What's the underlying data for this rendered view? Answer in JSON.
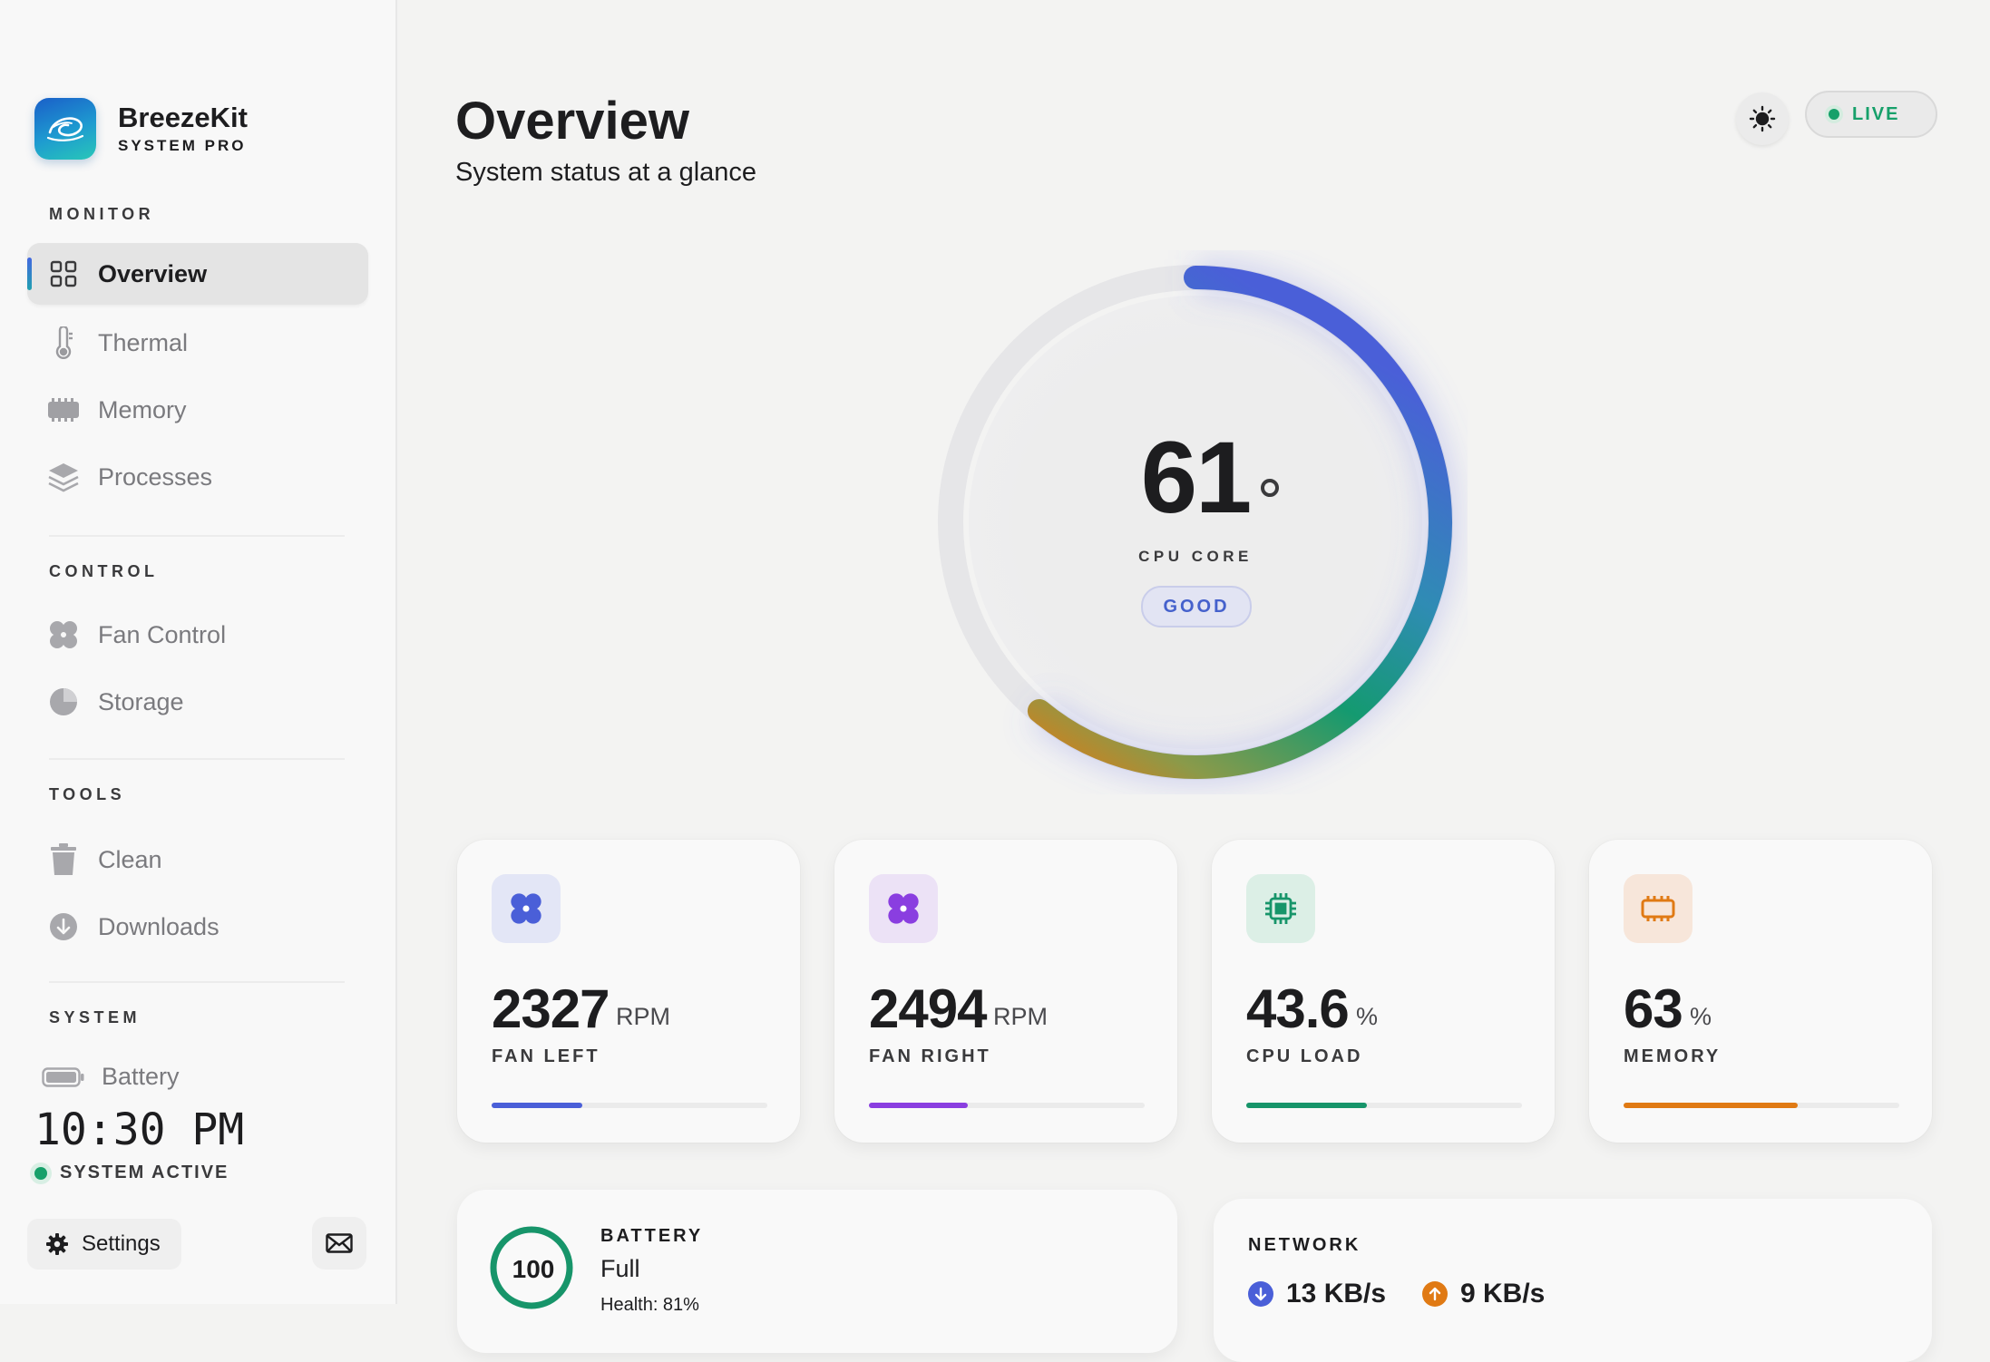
{
  "app": {
    "name": "BreezeKit",
    "edition": "SYSTEM PRO"
  },
  "sidebar": {
    "sections": {
      "monitor": "MONITOR",
      "control": "CONTROL",
      "tools": "TOOLS",
      "system": "SYSTEM"
    },
    "items": {
      "overview": {
        "label": "Overview",
        "icon": "grid-icon",
        "active": true
      },
      "thermal": {
        "label": "Thermal",
        "icon": "thermometer-icon"
      },
      "memory": {
        "label": "Memory",
        "icon": "memory-chip-icon"
      },
      "processes": {
        "label": "Processes",
        "icon": "layers-icon"
      },
      "fan_control": {
        "label": "Fan Control",
        "icon": "fan-icon"
      },
      "storage": {
        "label": "Storage",
        "icon": "pie-icon"
      },
      "clean": {
        "label": "Clean",
        "icon": "trash-icon"
      },
      "downloads": {
        "label": "Downloads",
        "icon": "download-icon"
      }
    },
    "battery_label": "Battery",
    "clock": "10:30 PM",
    "status": "SYSTEM ACTIVE",
    "settings_label": "Settings"
  },
  "header": {
    "title": "Overview",
    "subtitle": "System status at a glance",
    "live_label": "LIVE"
  },
  "gauge": {
    "value": "61",
    "label": "CPU CORE",
    "status": "GOOD",
    "fraction": 0.61
  },
  "stats": [
    {
      "value": "2327",
      "unit": "RPM",
      "label": "FAN LEFT",
      "fraction": 0.33,
      "color": "#4a5fd8",
      "icon_bg": "#e3e6f6",
      "icon": "fan-icon"
    },
    {
      "value": "2494",
      "unit": "RPM",
      "label": "FAN RIGHT",
      "fraction": 0.36,
      "color": "#8a3ee0",
      "icon_bg": "#ece2f6",
      "icon": "fan-icon"
    },
    {
      "value": "43.6",
      "unit": "%",
      "label": "CPU LOAD",
      "fraction": 0.436,
      "color": "#17956a",
      "icon_bg": "#dcefe6",
      "icon": "cpu-icon"
    },
    {
      "value": "63",
      "unit": "%",
      "label": "MEMORY",
      "fraction": 0.63,
      "color": "#e07a14",
      "icon_bg": "#f7e6da",
      "icon": "memory-chip-icon"
    }
  ],
  "battery_card": {
    "percent": "100",
    "title": "BATTERY",
    "state": "Full",
    "health": "Health: 81%",
    "fraction": 1.0,
    "color": "#17956a"
  },
  "network_card": {
    "title": "NETWORK",
    "download": "13 KB/s",
    "upload": "9 KB/s",
    "download_color": "#4a5fd8",
    "upload_color": "#e07a14"
  }
}
